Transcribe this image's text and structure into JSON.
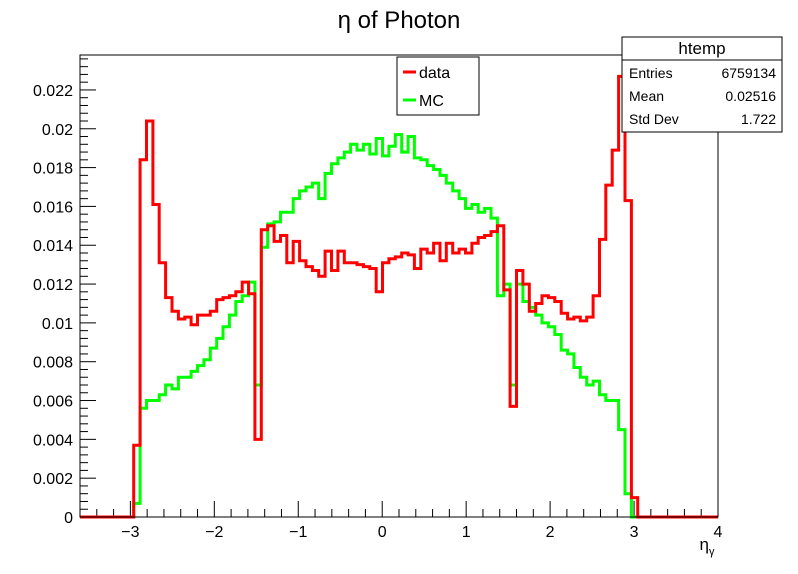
{
  "chart_data": {
    "type": "line",
    "title": "η of Photon",
    "xlabel": "η",
    "xlabel_sub": "γ",
    "ylabel": "",
    "xlim": [
      -3.6,
      4.0
    ],
    "ylim": [
      0,
      0.0238
    ],
    "x_ticks": [
      -3,
      -2,
      -1,
      0,
      1,
      2,
      3,
      4
    ],
    "x_tick_labels": [
      "−3",
      "−2",
      "−1",
      "0",
      "1",
      "2",
      "3",
      "4"
    ],
    "y_ticks": [
      0,
      0.002,
      0.004,
      0.006,
      0.008,
      0.01,
      0.012,
      0.014,
      0.016,
      0.018,
      0.02,
      0.022
    ],
    "y_tick_labels": [
      "0",
      "0.002",
      "0.004",
      "0.006",
      "0.008",
      "0.01",
      "0.012",
      "0.014",
      "0.016",
      "0.018",
      "0.02",
      "0.022"
    ],
    "bin_width": 0.076,
    "legend_position": "top-center",
    "series": [
      {
        "name": "data",
        "color": "#ff0000",
        "bins": [
          [
            -2.96,
            0.0037
          ],
          [
            -2.884,
            0.0184
          ],
          [
            -2.808,
            0.0204
          ],
          [
            -2.732,
            0.0161
          ],
          [
            -2.656,
            0.0131
          ],
          [
            -2.58,
            0.0113
          ],
          [
            -2.504,
            0.0106
          ],
          [
            -2.428,
            0.0102
          ],
          [
            -2.352,
            0.0103
          ],
          [
            -2.276,
            0.0099
          ],
          [
            -2.2,
            0.0104
          ],
          [
            -2.124,
            0.0104
          ],
          [
            -2.048,
            0.0106
          ],
          [
            -1.972,
            0.0112
          ],
          [
            -1.896,
            0.0113
          ],
          [
            -1.82,
            0.0114
          ],
          [
            -1.744,
            0.0116
          ],
          [
            -1.668,
            0.0121
          ],
          [
            -1.592,
            0.0115
          ],
          [
            -1.516,
            0.004
          ],
          [
            -1.44,
            0.0148
          ],
          [
            -1.364,
            0.015
          ],
          [
            -1.288,
            0.0142
          ],
          [
            -1.212,
            0.0145
          ],
          [
            -1.136,
            0.0131
          ],
          [
            -1.06,
            0.0142
          ],
          [
            -0.984,
            0.0132
          ],
          [
            -0.908,
            0.0129
          ],
          [
            -0.832,
            0.0127
          ],
          [
            -0.756,
            0.0124
          ],
          [
            -0.68,
            0.0137
          ],
          [
            -0.604,
            0.0127
          ],
          [
            -0.528,
            0.0137
          ],
          [
            -0.452,
            0.0131
          ],
          [
            -0.376,
            0.0131
          ],
          [
            -0.3,
            0.013
          ],
          [
            -0.224,
            0.0129
          ],
          [
            -0.148,
            0.0128
          ],
          [
            -0.072,
            0.0116
          ],
          [
            0.004,
            0.0131
          ],
          [
            0.08,
            0.0133
          ],
          [
            0.156,
            0.0134
          ],
          [
            0.232,
            0.0136
          ],
          [
            0.308,
            0.0135
          ],
          [
            0.384,
            0.0128
          ],
          [
            0.46,
            0.0138
          ],
          [
            0.536,
            0.0136
          ],
          [
            0.612,
            0.0141
          ],
          [
            0.688,
            0.0132
          ],
          [
            0.764,
            0.0141
          ],
          [
            0.84,
            0.0136
          ],
          [
            0.916,
            0.0138
          ],
          [
            0.992,
            0.0136
          ],
          [
            1.068,
            0.0141
          ],
          [
            1.144,
            0.0144
          ],
          [
            1.22,
            0.0145
          ],
          [
            1.296,
            0.0147
          ],
          [
            1.372,
            0.015
          ],
          [
            1.448,
            0.0117
          ],
          [
            1.524,
            0.0057
          ],
          [
            1.6,
            0.0127
          ],
          [
            1.676,
            0.012
          ],
          [
            1.752,
            0.0106
          ],
          [
            1.828,
            0.011
          ],
          [
            1.904,
            0.0114
          ],
          [
            1.98,
            0.0113
          ],
          [
            2.056,
            0.0111
          ],
          [
            2.132,
            0.0105
          ],
          [
            2.208,
            0.0102
          ],
          [
            2.284,
            0.0103
          ],
          [
            2.36,
            0.0101
          ],
          [
            2.436,
            0.0103
          ],
          [
            2.512,
            0.0114
          ],
          [
            2.588,
            0.0143
          ],
          [
            2.664,
            0.0171
          ],
          [
            2.74,
            0.0189
          ],
          [
            2.816,
            0.0227
          ],
          [
            2.892,
            0.0163
          ],
          [
            2.968,
            0.001
          ]
        ]
      },
      {
        "name": "MC",
        "color": "#00ff00",
        "bins": [
          [
            -2.96,
            0.0007
          ],
          [
            -2.884,
            0.0056
          ],
          [
            -2.808,
            0.006
          ],
          [
            -2.732,
            0.006
          ],
          [
            -2.656,
            0.0063
          ],
          [
            -2.58,
            0.0068
          ],
          [
            -2.504,
            0.0066
          ],
          [
            -2.428,
            0.0072
          ],
          [
            -2.352,
            0.0072
          ],
          [
            -2.276,
            0.0075
          ],
          [
            -2.2,
            0.0078
          ],
          [
            -2.124,
            0.0081
          ],
          [
            -2.048,
            0.0087
          ],
          [
            -1.972,
            0.0092
          ],
          [
            -1.896,
            0.0098
          ],
          [
            -1.82,
            0.0104
          ],
          [
            -1.744,
            0.0111
          ],
          [
            -1.668,
            0.0114
          ],
          [
            -1.592,
            0.0121
          ],
          [
            -1.516,
            0.0068
          ],
          [
            -1.44,
            0.0139
          ],
          [
            -1.364,
            0.0151
          ],
          [
            -1.288,
            0.0152
          ],
          [
            -1.212,
            0.0157
          ],
          [
            -1.136,
            0.0157
          ],
          [
            -1.06,
            0.0164
          ],
          [
            -0.984,
            0.0168
          ],
          [
            -0.908,
            0.017
          ],
          [
            -0.832,
            0.0172
          ],
          [
            -0.756,
            0.0164
          ],
          [
            -0.68,
            0.0177
          ],
          [
            -0.604,
            0.0182
          ],
          [
            -0.528,
            0.0185
          ],
          [
            -0.452,
            0.0188
          ],
          [
            -0.376,
            0.0192
          ],
          [
            -0.3,
            0.0189
          ],
          [
            -0.224,
            0.0192
          ],
          [
            -0.148,
            0.0187
          ],
          [
            -0.072,
            0.0195
          ],
          [
            0.004,
            0.0186
          ],
          [
            0.08,
            0.0191
          ],
          [
            0.156,
            0.0197
          ],
          [
            0.232,
            0.0188
          ],
          [
            0.308,
            0.0196
          ],
          [
            0.384,
            0.0185
          ],
          [
            0.46,
            0.0184
          ],
          [
            0.536,
            0.0181
          ],
          [
            0.612,
            0.0179
          ],
          [
            0.688,
            0.0176
          ],
          [
            0.764,
            0.0172
          ],
          [
            0.84,
            0.0168
          ],
          [
            0.916,
            0.0164
          ],
          [
            0.992,
            0.0159
          ],
          [
            1.068,
            0.0161
          ],
          [
            1.144,
            0.0157
          ],
          [
            1.22,
            0.0159
          ],
          [
            1.296,
            0.0154
          ],
          [
            1.372,
            0.0114
          ],
          [
            1.448,
            0.012
          ],
          [
            1.524,
            0.0068
          ],
          [
            1.6,
            0.012
          ],
          [
            1.676,
            0.0111
          ],
          [
            1.752,
            0.0108
          ],
          [
            1.828,
            0.0104
          ],
          [
            1.904,
            0.01
          ],
          [
            1.98,
            0.0098
          ],
          [
            2.056,
            0.0094
          ],
          [
            2.132,
            0.0086
          ],
          [
            2.208,
            0.0084
          ],
          [
            2.284,
            0.0077
          ],
          [
            2.36,
            0.0072
          ],
          [
            2.436,
            0.0068
          ],
          [
            2.512,
            0.007
          ],
          [
            2.588,
            0.0063
          ],
          [
            2.664,
            0.006
          ],
          [
            2.74,
            0.006
          ],
          [
            2.816,
            0.0045
          ],
          [
            2.892,
            0.0012
          ]
        ]
      }
    ],
    "stats": {
      "title": "htemp",
      "rows": [
        {
          "label": "Entries",
          "value": "6759134"
        },
        {
          "label": "Mean",
          "value": "0.02516"
        },
        {
          "label": "Std Dev",
          "value": "1.722"
        }
      ]
    }
  }
}
